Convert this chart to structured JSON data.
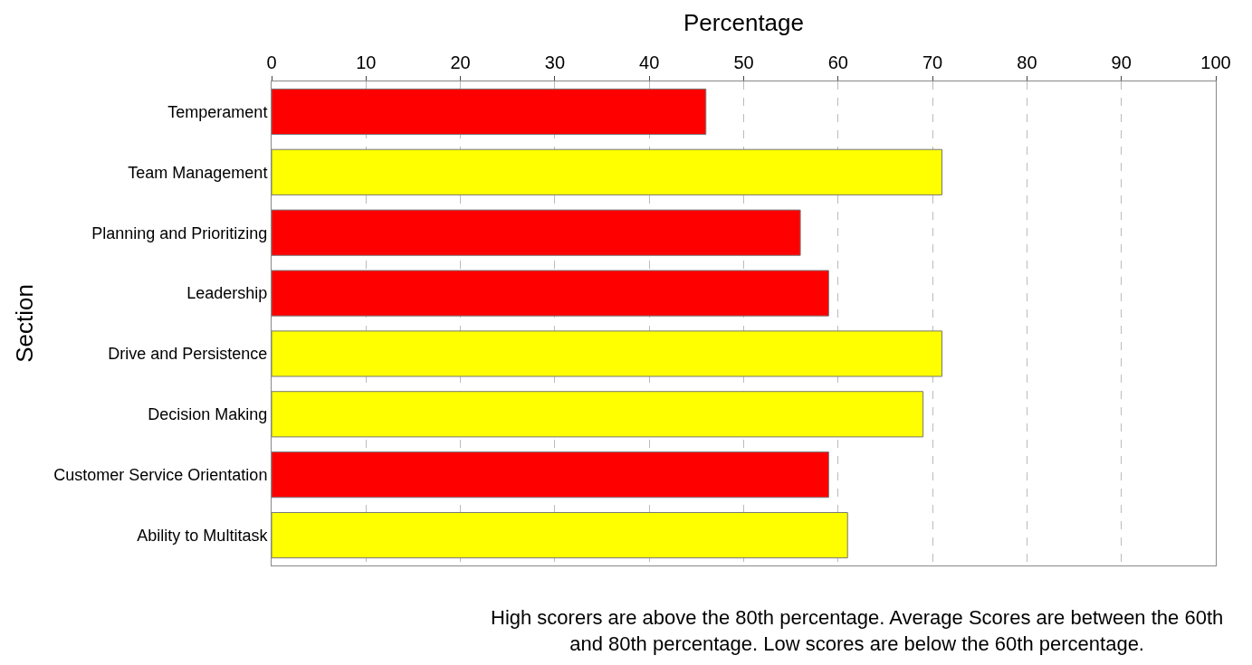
{
  "chart_data": {
    "type": "bar",
    "orientation": "horizontal",
    "xlabel": "Percentage",
    "ylabel": "Section",
    "categories": [
      "Temperament",
      "Team Management",
      "Planning and Prioritizing",
      "Leadership",
      "Drive and Persistence",
      "Decision Making",
      "Customer Service Orientation",
      "Ability to Multitask"
    ],
    "values": [
      46,
      71,
      56,
      59,
      71,
      69,
      59,
      61
    ],
    "colors": [
      "#ff0000",
      "#ffff00",
      "#ff0000",
      "#ff0000",
      "#ffff00",
      "#ffff00",
      "#ff0000",
      "#ffff00"
    ],
    "xlim": [
      0,
      100
    ],
    "xticks": [
      0,
      10,
      20,
      30,
      40,
      50,
      60,
      70,
      80,
      90,
      100
    ],
    "grid": "x",
    "annotations": [
      "High scorers are above the 80th percentage. Average Scores are between the 60th and 80th percentage. Low scores are below the 60th percentage."
    ]
  }
}
